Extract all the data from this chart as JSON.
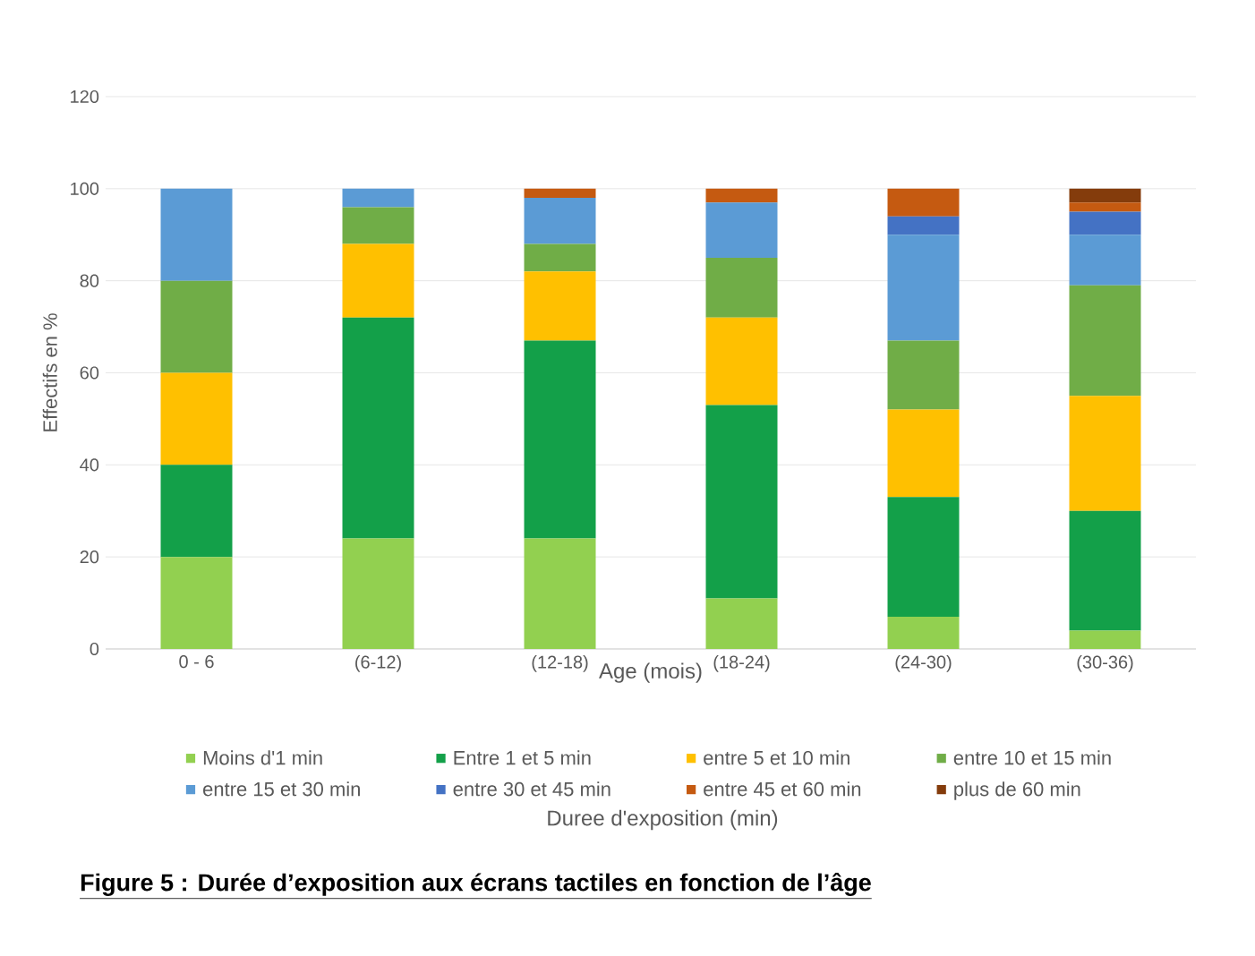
{
  "chart_data": {
    "type": "bar",
    "stacked": true,
    "title": "**Figure 5 : Durée d’exposition aux écrans tactiles en fonction de l’âge**",
    "xlabel": "Age (mois)",
    "ylabel": "Effectifs en %",
    "legend_title": "Duree d'exposition (min)",
    "categories": [
      "0 - 6",
      "(6-12)",
      "(12-18)",
      "(18-24)",
      "(24-30)",
      "(30-36)"
    ],
    "series": [
      {
        "name": "Moins d'1 min",
        "color": "#92d050",
        "values": [
          20,
          24,
          24,
          11,
          7,
          4
        ]
      },
      {
        "name": "Entre 1 et 5 min",
        "color": "#13a049",
        "values": [
          20,
          48,
          43,
          42,
          26,
          26
        ]
      },
      {
        "name": "entre 5 et 10 min",
        "color": "#ffc000",
        "values": [
          20,
          16,
          15,
          19,
          19,
          25
        ]
      },
      {
        "name": "entre 10 et 15 min",
        "color": "#70ad47",
        "values": [
          20,
          8,
          6,
          13,
          15,
          24
        ]
      },
      {
        "name": "entre 15 et 30 min",
        "color": "#5b9bd5",
        "values": [
          20,
          4,
          10,
          12,
          23,
          11
        ]
      },
      {
        "name": "entre 30 et 45 min",
        "color": "#4472c4",
        "values": [
          0,
          0,
          0,
          0,
          4,
          5
        ]
      },
      {
        "name": "entre 45 et 60 min",
        "color": "#c55a11",
        "values": [
          0,
          0,
          2,
          3,
          6,
          2
        ]
      },
      {
        "name": "plus de 60 min",
        "color": "#843c0c",
        "values": [
          0,
          0,
          0,
          0,
          0,
          3
        ]
      }
    ],
    "ylim": [
      0,
      120
    ],
    "yticks": [
      0,
      20,
      40,
      60,
      80,
      100,
      120
    ],
    "grid": "y",
    "legend": "bottom"
  }
}
